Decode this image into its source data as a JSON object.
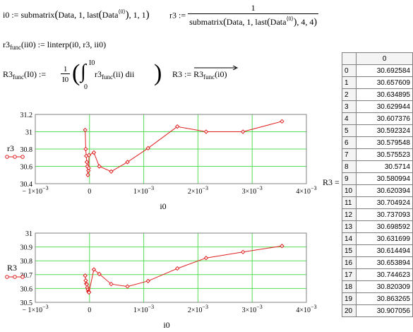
{
  "equations": {
    "i0_lhs": "i0 :=",
    "i0_rhs_a": "submatrix",
    "i0_rhs_b": "Data, 1, last",
    "i0_rhs_c": "Data",
    "i0_rhs_sup": "⟨0⟩",
    "i0_rhs_d": ", 1, 1",
    "r3_lhs": "r3 :=",
    "r3_num": "1",
    "r3_den_a": "submatrix",
    "r3_den_b": "Data, 1, last",
    "r3_den_c": "Data",
    "r3_den_sup": "⟨0⟩",
    "r3_den_d": ", 4, 4",
    "r3func_name": "r3",
    "r3func_sub": "func",
    "r3func_args": "(ii0) := linterp(i0, r3, ii0)",
    "R3func_name": "R3",
    "R3func_sub": "func",
    "R3func_arg": "(I0) :=",
    "R3func_frac_num": "1",
    "R3func_frac_den": "I0",
    "R3func_int_upper": "I0",
    "R3func_int_lower": "0",
    "R3func_integrand": "r3",
    "R3func_integrand_sub": "func",
    "R3func_integrand_arg": "(ii) dii",
    "R3_assign_lhs": "R3 :=",
    "R3_assign_rhs": "R3",
    "R3_assign_sub": "func",
    "R3_assign_arg": "(i0)",
    "R3_eq": "R3 ="
  },
  "table": {
    "column_header": "0",
    "rows": [
      {
        "index": "0",
        "value": "30.692584"
      },
      {
        "index": "1",
        "value": "30.657609"
      },
      {
        "index": "2",
        "value": "30.634895"
      },
      {
        "index": "3",
        "value": "30.629944"
      },
      {
        "index": "4",
        "value": "30.607376"
      },
      {
        "index": "5",
        "value": "30.592324"
      },
      {
        "index": "6",
        "value": "30.579548"
      },
      {
        "index": "7",
        "value": "30.575523"
      },
      {
        "index": "8",
        "value": "30.5714"
      },
      {
        "index": "9",
        "value": "30.580994"
      },
      {
        "index": "10",
        "value": "30.620394"
      },
      {
        "index": "11",
        "value": "30.704924"
      },
      {
        "index": "12",
        "value": "30.737093"
      },
      {
        "index": "13",
        "value": "30.698592"
      },
      {
        "index": "14",
        "value": "30.631699"
      },
      {
        "index": "15",
        "value": "30.614494"
      },
      {
        "index": "16",
        "value": "30.653894"
      },
      {
        "index": "17",
        "value": "30.744623"
      },
      {
        "index": "18",
        "value": "30.820309"
      },
      {
        "index": "19",
        "value": "30.863265"
      },
      {
        "index": "20",
        "value": "30.907056"
      }
    ]
  },
  "colors": {
    "series": "#e02020",
    "grid": "#55dd55",
    "axis": "#808080"
  },
  "chart_data": [
    {
      "type": "line",
      "ylabel": "r3",
      "xlabel": "i0",
      "xlim": [
        -0.001,
        0.004
      ],
      "ylim": [
        30.4,
        31.2
      ],
      "x_ticks": [
        -0.001,
        0,
        0.001,
        0.002,
        0.003,
        0.004
      ],
      "x_tick_labels": [
        "− 1×10",
        "0",
        "1×10",
        "2×10",
        "3×10",
        "4×10"
      ],
      "x_tick_exps": [
        "−3",
        "",
        "−3",
        "−3",
        "−3",
        "−3"
      ],
      "y_ticks": [
        30.4,
        30.6,
        30.8,
        31,
        31.2
      ],
      "y_tick_labels": [
        "30.4",
        "30.6",
        "30.8",
        "31",
        "31.2"
      ],
      "grid": true,
      "series": [
        {
          "x": [
            -8e-05,
            -7e-05,
            -6e-05,
            -5e-05,
            -4e-05,
            -3e-05,
            -2e-05,
            -1.5e-05,
            -1e-05,
            8e-05,
            0.00018,
            0.0004,
            0.0007,
            0.00108,
            0.00162,
            0.00215,
            0.00283,
            0.00355
          ],
          "y": [
            31.02,
            30.8,
            30.72,
            30.65,
            30.6,
            30.5,
            30.55,
            30.58,
            30.73,
            30.76,
            30.6,
            30.54,
            30.65,
            30.81,
            31.06,
            31.0,
            31.0,
            31.12
          ]
        }
      ]
    },
    {
      "type": "line",
      "ylabel": "R3",
      "xlabel": "i0",
      "xlim": [
        -0.001,
        0.004
      ],
      "ylim": [
        30.5,
        31
      ],
      "x_ticks": [
        -0.001,
        0,
        0.001,
        0.002,
        0.003,
        0.004
      ],
      "x_tick_labels": [
        "− 1×10",
        "0",
        "1×10",
        "2×10",
        "3×10",
        "4×10"
      ],
      "x_tick_exps": [
        "−3",
        "",
        "−3",
        "−3",
        "−3",
        "−3"
      ],
      "y_ticks": [
        30.5,
        30.6,
        30.7,
        30.8,
        30.9,
        31
      ],
      "y_tick_labels": [
        "30.5",
        "30.6",
        "30.7",
        "30.8",
        "30.9",
        "31"
      ],
      "grid": true,
      "series": [
        {
          "x": [
            -8e-05,
            -7e-05,
            -6e-05,
            -5e-05,
            -4e-05,
            -3e-05,
            -2e-05,
            -1.5e-05,
            -1e-05,
            8e-05,
            0.00018,
            0.0004,
            0.0007,
            0.00108,
            0.00162,
            0.00215,
            0.00283,
            0.00355
          ],
          "y": [
            30.692584,
            30.657609,
            30.634895,
            30.629944,
            30.607376,
            30.592324,
            30.579548,
            30.575523,
            30.5714,
            30.737093,
            30.704924,
            30.631699,
            30.614494,
            30.653894,
            30.744623,
            30.820309,
            30.863265,
            30.907056
          ]
        }
      ]
    }
  ]
}
